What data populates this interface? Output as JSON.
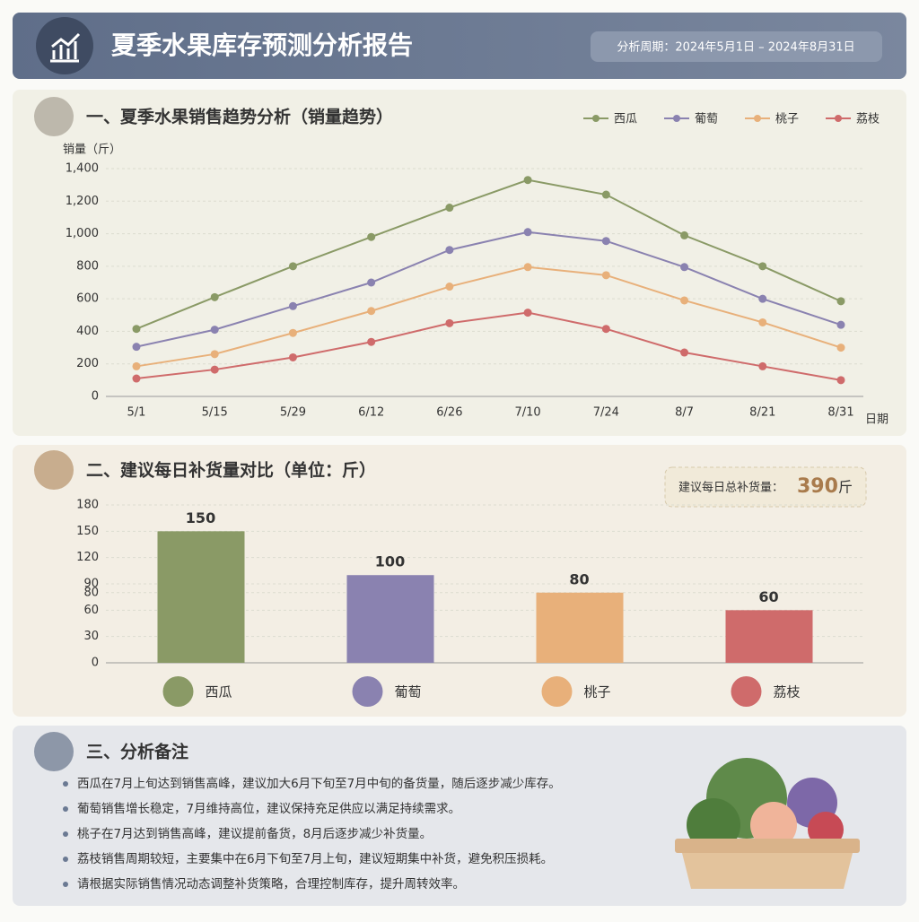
{
  "header": {
    "title": "夏季水果库存预测分析报告",
    "period": "分析周期：2024年5月1日 – 2024年8月31日"
  },
  "chart_data": [
    {
      "type": "line",
      "title": "一、夏季水果销售趋势分析（销量趋势）",
      "y_label": "销量（斤）",
      "x_label": "日期",
      "categories": [
        "5/1",
        "5/15",
        "5/29",
        "6/12",
        "6/26",
        "7/10",
        "7/24",
        "8/7",
        "8/21",
        "8/31"
      ],
      "series": [
        {
          "name": "西瓜",
          "color": "#8a9a66",
          "values": [
            415,
            610,
            800,
            980,
            1160,
            1330,
            1240,
            990,
            800,
            585
          ]
        },
        {
          "name": "葡萄",
          "color": "#8a82b0",
          "values": [
            305,
            410,
            555,
            700,
            900,
            1010,
            955,
            795,
            600,
            440
          ]
        },
        {
          "name": "桃子",
          "color": "#e8b07a",
          "values": [
            185,
            260,
            390,
            525,
            675,
            795,
            745,
            590,
            455,
            300
          ]
        },
        {
          "name": "荔枝",
          "color": "#cf6b6b",
          "values": [
            110,
            165,
            240,
            335,
            450,
            515,
            415,
            270,
            185,
            100
          ]
        }
      ],
      "ylim": [
        0,
        1400
      ],
      "yticks": [
        0,
        200,
        400,
        600,
        800,
        {
          "value": 1000,
          "label": "1,000"
        },
        {
          "value": 1200,
          "label": "1,200"
        },
        {
          "value": 1400,
          "label": "1,400"
        }
      ],
      "grid": true,
      "legend": "top-right"
    },
    {
      "type": "bar",
      "title": "二、建议每日补货量对比（单位：斤）",
      "categories": [
        "西瓜",
        "葡萄",
        "桃子",
        "荔枝"
      ],
      "values": [
        150,
        100,
        80,
        60
      ],
      "colors": [
        "#8a9a66",
        "#8a82b0",
        "#e8b07a",
        "#cf6b6b"
      ],
      "ylim": [
        0,
        180
      ],
      "yticks": [
        0,
        30,
        60,
        80,
        90,
        120,
        150,
        180
      ],
      "grid": true,
      "total_label": "建议每日总补货量：",
      "total_value": 390,
      "total_unit": "斤"
    }
  ],
  "notes": {
    "title": "三、分析备注",
    "items": [
      "西瓜在7月上旬达到销售高峰，建议加大6月下旬至7月中旬的备货量，随后逐步减少库存。",
      "葡萄销售增长稳定，7月维持高位，建议保持充足供应以满足持续需求。",
      "桃子在7月达到销售高峰，建议提前备货，8月后逐步减少补货量。",
      "荔枝销售周期较短，主要集中在6月下旬至7月上旬，建议短期集中补货，避免积压损耗。",
      "请根据实际销售情况动态调整补货策略，合理控制库存，提升周转效率。"
    ]
  }
}
